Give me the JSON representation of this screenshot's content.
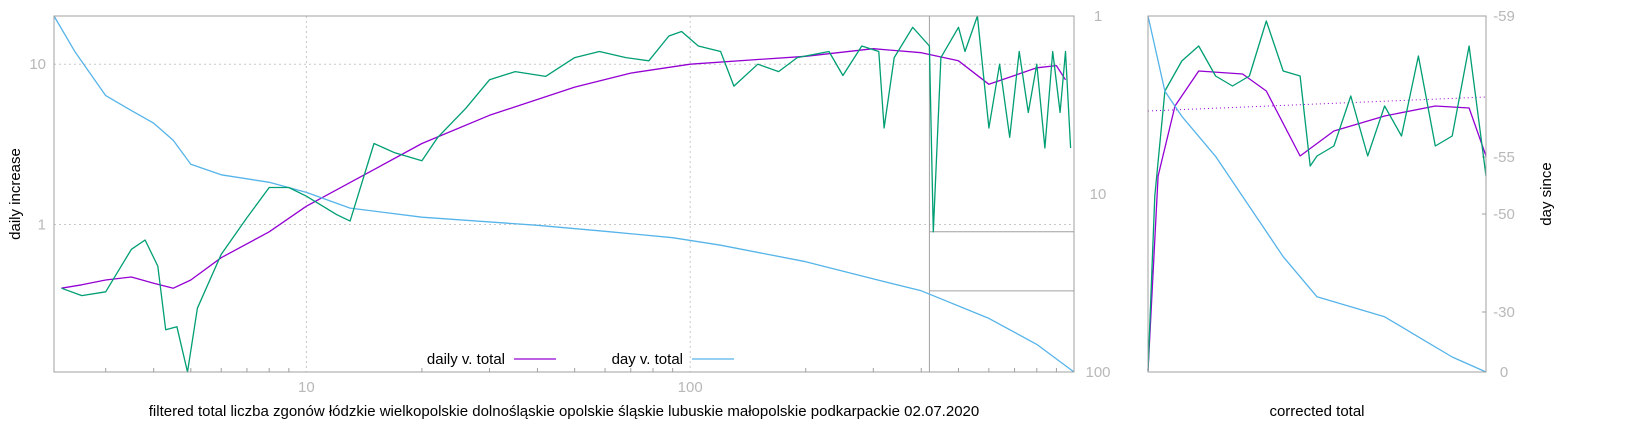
{
  "colors": {
    "daily": "#9400d3",
    "day": "#56b4e9",
    "raw": "#009e73",
    "grid": "#c8c8c8",
    "frame": "#a0a0a0",
    "tick": "#b8b8b8"
  },
  "chart_data": [
    {
      "type": "line",
      "xlabel": "filtered total liczba zgonów łódzkie wielkopolskie dolnośląskie opolskie śląskie lubuskie małopolskie podkarpackie 02.07.2020",
      "ylabel": "daily increase",
      "x_scale": "log",
      "y_scale": "log",
      "y2_scale": "log-reversed",
      "xlim": [
        2.2,
        1000
      ],
      "ylim": [
        0.12,
        20
      ],
      "y2lim": [
        1,
        100
      ],
      "x_ticks": [
        {
          "value": 10,
          "label": "10"
        },
        {
          "value": 100,
          "label": "100"
        }
      ],
      "y_ticks": [
        {
          "value": 1,
          "label": "1"
        },
        {
          "value": 10,
          "label": "10"
        }
      ],
      "y2_ticks": [
        {
          "value": 1,
          "label": "1"
        },
        {
          "value": 10,
          "label": "10"
        },
        {
          "value": 100,
          "label": "100"
        }
      ],
      "grid": true,
      "legend_position": "bottom-center",
      "series": [
        {
          "name": "daily v. total",
          "axis": "y",
          "points": [
            [
              2.3,
              0.4
            ],
            [
              2.6,
              0.42
            ],
            [
              3,
              0.45
            ],
            [
              3.5,
              0.47
            ],
            [
              4,
              0.43
            ],
            [
              4.5,
              0.4
            ],
            [
              5,
              0.45
            ],
            [
              6,
              0.62
            ],
            [
              8,
              0.9
            ],
            [
              10,
              1.3
            ],
            [
              15,
              2.2
            ],
            [
              20,
              3.2
            ],
            [
              30,
              4.8
            ],
            [
              50,
              7.2
            ],
            [
              70,
              8.8
            ],
            [
              100,
              10
            ],
            [
              150,
              10.7
            ],
            [
              200,
              11.2
            ],
            [
              300,
              12.5
            ],
            [
              400,
              11.8
            ],
            [
              500,
              10.5
            ],
            [
              600,
              7.5
            ],
            [
              700,
              8.5
            ],
            [
              800,
              9.5
            ],
            [
              900,
              9.8
            ],
            [
              950,
              8
            ]
          ]
        },
        {
          "name": "day v. total",
          "axis": "y2",
          "points": [
            [
              2.2,
              1
            ],
            [
              2.5,
              1.6
            ],
            [
              3,
              2.8
            ],
            [
              3.5,
              3.4
            ],
            [
              4,
              4
            ],
            [
              4.5,
              5
            ],
            [
              5,
              6.8
            ],
            [
              6,
              7.8
            ],
            [
              8,
              8.6
            ],
            [
              10,
              9.8
            ],
            [
              13,
              12
            ],
            [
              20,
              13.5
            ],
            [
              40,
              15
            ],
            [
              60,
              16.2
            ],
            [
              90,
              17.6
            ],
            [
              120,
              19.4
            ],
            [
              200,
              24
            ],
            [
              300,
              30
            ],
            [
              400,
              35
            ],
            [
              600,
              50
            ],
            [
              800,
              70
            ],
            [
              1000,
              100
            ]
          ]
        },
        {
          "axis": "y",
          "points": [
            [
              2.3,
              0.4
            ],
            [
              2.6,
              0.36
            ],
            [
              3,
              0.38
            ],
            [
              3.5,
              0.7
            ],
            [
              3.8,
              0.8
            ],
            [
              4.1,
              0.55
            ],
            [
              4.3,
              0.22
            ],
            [
              4.6,
              0.23
            ],
            [
              4.9,
              0.12
            ],
            [
              5.2,
              0.3
            ],
            [
              6,
              0.65
            ],
            [
              7,
              1.1
            ],
            [
              8,
              1.7
            ],
            [
              9,
              1.7
            ],
            [
              10,
              1.5
            ],
            [
              12,
              1.15
            ],
            [
              13,
              1.05
            ],
            [
              15,
              3.2
            ],
            [
              17,
              2.8
            ],
            [
              20,
              2.5
            ],
            [
              22,
              3.5
            ],
            [
              26,
              5.3
            ],
            [
              30,
              8
            ],
            [
              35,
              9
            ],
            [
              42,
              8.4
            ],
            [
              50,
              11
            ],
            [
              58,
              12
            ],
            [
              68,
              11
            ],
            [
              78,
              10.5
            ],
            [
              88,
              15
            ],
            [
              95,
              16
            ],
            [
              105,
              13
            ],
            [
              120,
              12
            ],
            [
              130,
              7.3
            ],
            [
              150,
              10
            ],
            [
              170,
              9
            ],
            [
              190,
              11
            ],
            [
              230,
              12
            ],
            [
              250,
              8.5
            ],
            [
              280,
              13
            ],
            [
              310,
              12
            ],
            [
              320,
              4
            ],
            [
              340,
              11
            ],
            [
              380,
              17
            ],
            [
              420,
              13
            ],
            [
              430,
              0.9
            ],
            [
              450,
              11
            ],
            [
              500,
              17
            ],
            [
              520,
              12
            ],
            [
              560,
              20
            ],
            [
              600,
              4
            ],
            [
              640,
              10
            ],
            [
              680,
              3.5
            ],
            [
              720,
              12
            ],
            [
              760,
              5
            ],
            [
              800,
              10
            ],
            [
              840,
              3
            ],
            [
              880,
              12
            ],
            [
              920,
              5
            ],
            [
              950,
              12
            ],
            [
              980,
              3
            ]
          ]
        }
      ],
      "inset": {
        "x_from": 420,
        "y": 0.9,
        "y2_value": 35,
        "color": "#a0a0a0"
      }
    },
    {
      "type": "line",
      "xlabel": "corrected total",
      "ylabel": "day since",
      "y2_ticks": [
        {
          "value": 59,
          "label": "-59"
        },
        {
          "value": 55,
          "label": "-55"
        },
        {
          "value": 50,
          "label": "-50"
        },
        {
          "value": 30,
          "label": "-30"
        },
        {
          "value": 0,
          "label": "0"
        }
      ],
      "series": [
        {
          "axis": "y",
          "points": [
            [
              0,
              355
            ],
            [
              0.03,
              160
            ],
            [
              0.08,
              90
            ],
            [
              0.15,
              55
            ],
            [
              0.28,
              58
            ],
            [
              0.35,
              75
            ],
            [
              0.45,
              140
            ],
            [
              0.55,
              115
            ],
            [
              0.7,
              100
            ],
            [
              0.85,
              90
            ],
            [
              0.95,
              92
            ],
            [
              1,
              140
            ]
          ]
        },
        {
          "axis": "y",
          "points": [
            [
              0,
              355
            ],
            [
              0.02,
              180
            ],
            [
              0.05,
              75
            ],
            [
              0.1,
              45
            ],
            [
              0.15,
              30
            ],
            [
              0.2,
              60
            ],
            [
              0.25,
              70
            ],
            [
              0.3,
              60
            ],
            [
              0.35,
              5
            ],
            [
              0.4,
              55
            ],
            [
              0.45,
              60
            ],
            [
              0.48,
              150
            ],
            [
              0.5,
              140
            ],
            [
              0.55,
              130
            ],
            [
              0.6,
              80
            ],
            [
              0.65,
              140
            ],
            [
              0.7,
              90
            ],
            [
              0.75,
              120
            ],
            [
              0.8,
              40
            ],
            [
              0.85,
              130
            ],
            [
              0.9,
              120
            ],
            [
              0.95,
              30
            ],
            [
              1,
              160
            ]
          ]
        },
        {
          "axis": "y2",
          "points": [
            [
              0,
              0
            ],
            [
              0.05,
              75
            ],
            [
              0.1,
              100
            ],
            [
              0.15,
              120
            ],
            [
              0.2,
              140
            ],
            [
              0.3,
              190
            ],
            [
              0.4,
              240
            ],
            [
              0.5,
              280
            ],
            [
              0.6,
              290
            ],
            [
              0.7,
              300
            ],
            [
              0.8,
              320
            ],
            [
              0.9,
              340
            ],
            [
              1,
              355
            ]
          ]
        }
      ]
    }
  ]
}
